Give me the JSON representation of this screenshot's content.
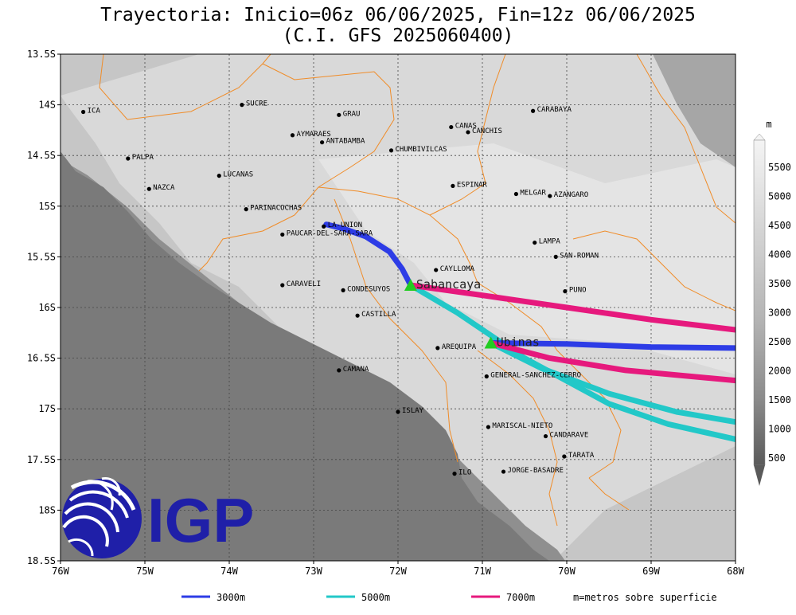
{
  "title": {
    "line1": "Trayectoria: Inicio=06z 06/06/2025, Fin=12z 06/06/2025",
    "line2": "(C.I. GFS 2025060400)"
  },
  "extent": {
    "lon_min": -76,
    "lon_max": -68,
    "lat_min": -18.5,
    "lat_max": -13.5
  },
  "axes": {
    "lat_ticks": [
      {
        "v": -13.5,
        "label": "13.5S"
      },
      {
        "v": -14,
        "label": "14S"
      },
      {
        "v": -14.5,
        "label": "14.5S"
      },
      {
        "v": -15,
        "label": "15S"
      },
      {
        "v": -15.5,
        "label": "15.5S"
      },
      {
        "v": -16,
        "label": "16S"
      },
      {
        "v": -16.5,
        "label": "16.5S"
      },
      {
        "v": -17,
        "label": "17S"
      },
      {
        "v": -17.5,
        "label": "17.5S"
      },
      {
        "v": -18,
        "label": "18S"
      },
      {
        "v": -18.5,
        "label": "18.5S"
      }
    ],
    "lon_ticks": [
      {
        "v": -76,
        "label": "76W"
      },
      {
        "v": -75,
        "label": "75W"
      },
      {
        "v": -74,
        "label": "74W"
      },
      {
        "v": -73,
        "label": "73W"
      },
      {
        "v": -72,
        "label": "72W"
      },
      {
        "v": -71,
        "label": "71W"
      },
      {
        "v": -70,
        "label": "70W"
      },
      {
        "v": -69,
        "label": "69W"
      },
      {
        "v": -68,
        "label": "68W"
      }
    ],
    "grid": true
  },
  "colorbar": {
    "unit": "m",
    "ticks": [
      "5500",
      "5000",
      "4500",
      "4000",
      "3500",
      "3000",
      "2500",
      "2000",
      "1500",
      "1000",
      "500"
    ]
  },
  "colors": {
    "c3000": "#2d3ce6",
    "c5000": "#22c8c8",
    "c7000": "#e6197d",
    "borders": "#f08c28",
    "volcano": "#22cc22",
    "logo": "#1f1fa8"
  },
  "volcanoes": [
    {
      "name": "Sabancaya",
      "lon": -71.85,
      "lat": -15.78
    },
    {
      "name": "Ubinas",
      "lon": -70.9,
      "lat": -16.35
    }
  ],
  "places": [
    {
      "name": "ICA",
      "lon": -75.73,
      "lat": -14.07
    },
    {
      "name": "SUCRE",
      "lon": -73.85,
      "lat": -14.0
    },
    {
      "name": "GRAU",
      "lon": -72.7,
      "lat": -14.1
    },
    {
      "name": "AYMARAES",
      "lon": -73.25,
      "lat": -14.3
    },
    {
      "name": "ANTABAMBA",
      "lon": -72.9,
      "lat": -14.37
    },
    {
      "name": "CANAS",
      "lon": -71.37,
      "lat": -14.22
    },
    {
      "name": "CANCHIS",
      "lon": -71.17,
      "lat": -14.27
    },
    {
      "name": "CARABAYA",
      "lon": -70.4,
      "lat": -14.06
    },
    {
      "name": "CHUMBIVILCAS",
      "lon": -72.08,
      "lat": -14.45
    },
    {
      "name": "PALPA",
      "lon": -75.2,
      "lat": -14.53
    },
    {
      "name": "LUCANAS",
      "lon": -74.12,
      "lat": -14.7
    },
    {
      "name": "NAZCA",
      "lon": -74.95,
      "lat": -14.83
    },
    {
      "name": "ESPINAR",
      "lon": -71.35,
      "lat": -14.8
    },
    {
      "name": "MELGAR",
      "lon": -70.6,
      "lat": -14.88
    },
    {
      "name": "AZANGARO",
      "lon": -70.2,
      "lat": -14.9
    },
    {
      "name": "PARINACOCHAS",
      "lon": -73.8,
      "lat": -15.03
    },
    {
      "name": "LA-UNION",
      "lon": -72.88,
      "lat": -15.2
    },
    {
      "name": "PAUCAR-DEL-SARA-SARA",
      "lon": -73.37,
      "lat": -15.28
    },
    {
      "name": "LAMPA",
      "lon": -70.38,
      "lat": -15.36
    },
    {
      "name": "CAYLLOMA",
      "lon": -71.55,
      "lat": -15.63
    },
    {
      "name": "SAN-ROMAN",
      "lon": -70.13,
      "lat": -15.5
    },
    {
      "name": "CARAVELI",
      "lon": -73.37,
      "lat": -15.78
    },
    {
      "name": "CONDESUYOS",
      "lon": -72.65,
      "lat": -15.83
    },
    {
      "name": "PUNO",
      "lon": -70.02,
      "lat": -15.84
    },
    {
      "name": "CASTILLA",
      "lon": -72.48,
      "lat": -16.08
    },
    {
      "name": "AREQUIPA",
      "lon": -71.53,
      "lat": -16.4
    },
    {
      "name": "CAMANA",
      "lon": -72.7,
      "lat": -16.62
    },
    {
      "name": "GENERAL-SANCHEZ-CERRO",
      "lon": -70.95,
      "lat": -16.68
    },
    {
      "name": "ISLAY",
      "lon": -72.0,
      "lat": -17.03
    },
    {
      "name": "MARISCAL-NIETO",
      "lon": -70.93,
      "lat": -17.18
    },
    {
      "name": "CANDARAVE",
      "lon": -70.25,
      "lat": -17.27
    },
    {
      "name": "TARATA",
      "lon": -70.03,
      "lat": -17.47
    },
    {
      "name": "ILO",
      "lon": -71.33,
      "lat": -17.64
    },
    {
      "name": "JORGE-BASADRE",
      "lon": -70.75,
      "lat": -17.62
    }
  ],
  "trajectories": [
    {
      "height": "3000m",
      "color_key": "c3000",
      "points": [
        [
          -71.85,
          -15.78
        ],
        [
          -71.95,
          -15.62
        ],
        [
          -72.1,
          -15.45
        ],
        [
          -72.38,
          -15.3
        ],
        [
          -72.65,
          -15.22
        ],
        [
          -72.85,
          -15.18
        ]
      ]
    },
    {
      "height": "5000m",
      "color_key": "c5000",
      "points": [
        [
          -71.85,
          -15.78
        ],
        [
          -71.3,
          -16.05
        ],
        [
          -70.5,
          -16.5
        ],
        [
          -69.5,
          -16.95
        ],
        [
          -68.8,
          -17.15
        ],
        [
          -68,
          -17.3
        ]
      ]
    },
    {
      "height": "7000m",
      "color_key": "c7000",
      "points": [
        [
          -71.85,
          -15.78
        ],
        [
          -71,
          -15.88
        ],
        [
          -70,
          -16.0
        ],
        [
          -69,
          -16.12
        ],
        [
          -68,
          -16.22
        ]
      ]
    },
    {
      "height": "3000m",
      "color_key": "c3000",
      "points": [
        [
          -70.9,
          -16.35
        ],
        [
          -70,
          -16.36
        ],
        [
          -69,
          -16.39
        ],
        [
          -68,
          -16.4
        ]
      ]
    },
    {
      "height": "5000m",
      "color_key": "c5000",
      "points": [
        [
          -70.9,
          -16.35
        ],
        [
          -70.3,
          -16.6
        ],
        [
          -69.5,
          -16.85
        ],
        [
          -68.7,
          -17.03
        ],
        [
          -68,
          -17.13
        ]
      ]
    },
    {
      "height": "7000m",
      "color_key": "c7000",
      "points": [
        [
          -70.9,
          -16.35
        ],
        [
          -70.2,
          -16.5
        ],
        [
          -69.3,
          -16.62
        ],
        [
          -68,
          -16.72
        ]
      ]
    }
  ],
  "legend": [
    {
      "label": "3000m",
      "color_key": "c3000"
    },
    {
      "label": "5000m",
      "color_key": "c5000"
    },
    {
      "label": "7000m",
      "color_key": "c7000"
    }
  ],
  "legend_note": "m=metros sobre superficie",
  "logo_text": "IGP"
}
